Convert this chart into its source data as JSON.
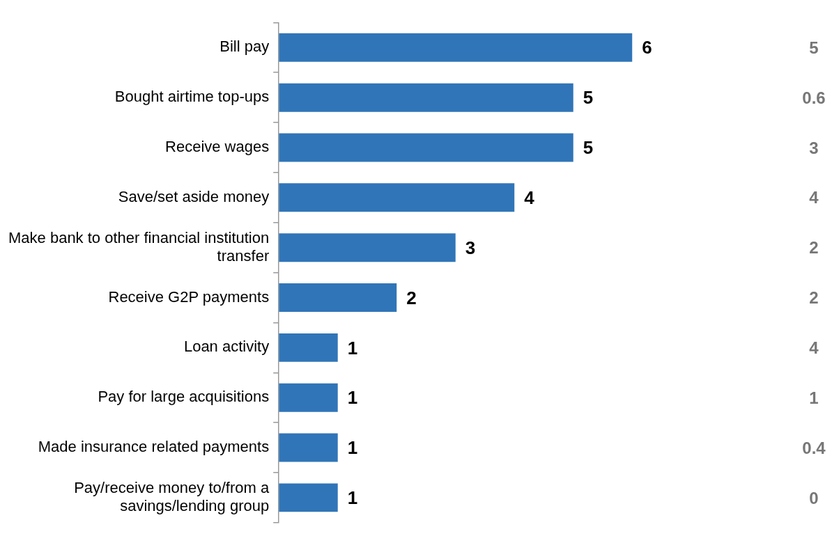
{
  "chart_data": {
    "type": "bar",
    "orientation": "horizontal",
    "categories": [
      "Bill pay",
      "Bought airtime top-ups",
      "Receive wages",
      "Save/set aside money",
      "Make bank to other financial institution transfer",
      "Receive G2P payments",
      "Loan activity",
      "Pay for large acquisitions",
      "Made insurance related payments",
      "Pay/receive money to/from a savings/lending group"
    ],
    "values": [
      6,
      5,
      5,
      4,
      3,
      2,
      1,
      1,
      1,
      1
    ],
    "color": "#3075b8",
    "data_labels": true,
    "legend": false,
    "grid": false,
    "annotations": [
      "5",
      "0.6",
      "3",
      "4",
      "2",
      "2",
      "4",
      "1",
      "0.4",
      "0"
    ]
  }
}
